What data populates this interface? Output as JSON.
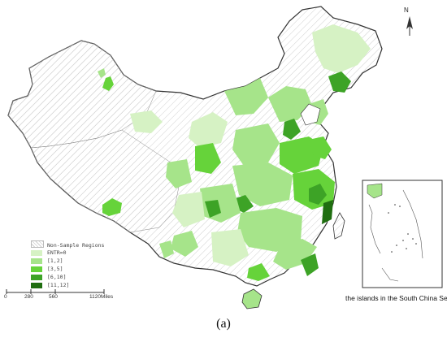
{
  "north_label": "N",
  "legend": {
    "title": "Non-Sample Regions",
    "items": [
      {
        "label": "ENTR=0",
        "color": "#d6f2c4"
      },
      {
        "label": "[1,2]",
        "color": "#a6e48a"
      },
      {
        "label": "[3,5]",
        "color": "#66d33a"
      },
      {
        "label": "[6,10]",
        "color": "#3da326"
      },
      {
        "label": "[11,12]",
        "color": "#1f6e10"
      }
    ]
  },
  "scale_bar": {
    "ticks": [
      "0",
      "280",
      "560",
      "1120Miles"
    ]
  },
  "inset_label": "the islands in the South China Sea",
  "panel_label": "(a)"
}
